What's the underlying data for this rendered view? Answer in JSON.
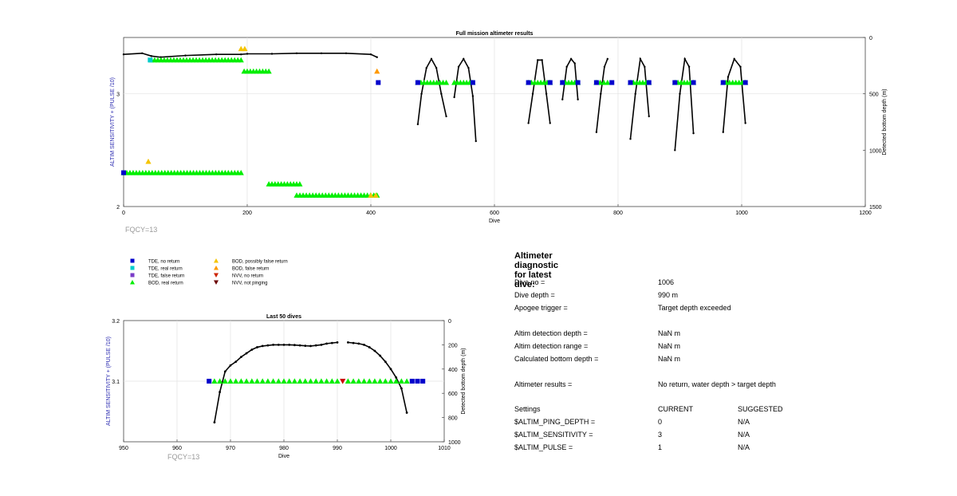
{
  "chart_data": [
    {
      "type": "scatter",
      "title": "Full mission altimeter results",
      "xlabel": "Dive",
      "ylabel_left": "ALTIM SENSITIVITY + (PULSE /10)",
      "ylabel_right": "Detected bottom depth (m)",
      "xlim": [
        0,
        1200
      ],
      "ylim_left": [
        2,
        3.5
      ],
      "ylim_right": [
        1500,
        0
      ],
      "x_ticks": [
        "0",
        "200",
        "400",
        "600",
        "800",
        "1000",
        "1200"
      ],
      "y_ticks_left": [
        "2",
        "3"
      ],
      "y_ticks_right": [
        "0",
        "500",
        "1000",
        "1500"
      ],
      "grid": true,
      "annotation": "FQCY=13",
      "series": [
        {
          "name": "depth",
          "color": "#000000",
          "segments": [
            {
              "x": [
                0,
                30,
                45,
                60,
                100,
                150,
                190,
                200,
                240,
                280,
                320,
                360,
                400,
                410
              ],
              "y": [
                150,
                140,
                165,
                175,
                160,
                150,
                150,
                145,
                145,
                140,
                140,
                140,
                150,
                175
              ]
            },
            {
              "x": [
                476,
                482,
                490,
                498,
                506,
                514,
                522
              ],
              "y": [
                770,
                500,
                270,
                190,
                270,
                500,
                700
              ]
            },
            {
              "x": [
                535,
                542,
                550,
                558,
                565,
                570
              ],
              "y": [
                530,
                260,
                190,
                270,
                520,
                920
              ]
            },
            {
              "x": [
                655,
                662,
                670,
                677,
                684,
                690
              ],
              "y": [
                760,
                500,
                200,
                200,
                500,
                760
              ]
            },
            {
              "x": [
                710,
                717,
                724,
                730,
                735
              ],
              "y": [
                550,
                260,
                190,
                230,
                550
              ]
            },
            {
              "x": [
                765,
                772,
                778,
                783
              ],
              "y": [
                840,
                500,
                260,
                190
              ]
            },
            {
              "x": [
                820,
                828,
                836,
                843,
                850
              ],
              "y": [
                900,
                500,
                190,
                260,
                700
              ]
            },
            {
              "x": [
                892,
                900,
                908,
                915,
                922
              ],
              "y": [
                1000,
                500,
                190,
                260,
                850
              ]
            },
            {
              "x": [
                970,
                978,
                988,
                998,
                1006
              ],
              "y": [
                840,
                350,
                190,
                260,
                760
              ]
            }
          ]
        },
        {
          "name": "BOD, real return",
          "color": "#00ee00",
          "marker": "triangle",
          "segments": [
            {
              "x0": 0,
              "x1": 190,
              "y": 2.3
            },
            {
              "x0": 45,
              "x1": 190,
              "y": 3.3
            },
            {
              "x0": 195,
              "x1": 235,
              "y": 3.2
            },
            {
              "x0": 235,
              "x1": 285,
              "y": 2.2
            },
            {
              "x0": 280,
              "x1": 410,
              "y": 2.1
            },
            {
              "x0": 476,
              "x1": 522,
              "y": 3.1
            },
            {
              "x0": 535,
              "x1": 565,
              "y": 3.1
            },
            {
              "x0": 655,
              "x1": 690,
              "y": 3.1
            },
            {
              "x0": 710,
              "x1": 735,
              "y": 3.1
            },
            {
              "x0": 765,
              "x1": 783,
              "y": 3.1
            },
            {
              "x0": 820,
              "x1": 850,
              "y": 3.1
            },
            {
              "x0": 892,
              "x1": 922,
              "y": 3.1
            },
            {
              "x0": 970,
              "x1": 1006,
              "y": 3.1
            }
          ]
        },
        {
          "name": "BOD, possibly false return",
          "color": "#f5c400",
          "marker": "triangle",
          "points": [
            [
              40,
              2.4
            ],
            [
              190,
              3.4
            ],
            [
              196,
              3.4
            ],
            [
              400,
              2.1
            ],
            [
              408,
              2.1
            ]
          ]
        },
        {
          "name": "BOD, false return",
          "color": "#ff9900",
          "marker": "triangle",
          "points": [
            [
              410,
              3.2
            ]
          ]
        },
        {
          "name": "TDE, no return",
          "color": "#0000cc",
          "marker": "square",
          "points": [
            [
              412,
              3.1
            ],
            [
              476,
              3.1
            ],
            [
              565,
              3.1
            ],
            [
              655,
              3.1
            ],
            [
              690,
              3.1
            ],
            [
              710,
              3.1
            ],
            [
              735,
              3.1
            ],
            [
              765,
              3.1
            ],
            [
              790,
              3.1
            ],
            [
              820,
              3.1
            ],
            [
              850,
              3.1
            ],
            [
              892,
              3.1
            ],
            [
              922,
              3.1
            ],
            [
              970,
              3.1
            ],
            [
              1006,
              3.1
            ],
            [
              0,
              2.3
            ]
          ]
        },
        {
          "name": "TDE, real return",
          "color": "#00cccc",
          "marker": "square",
          "points": [
            [
              43,
              3.3
            ]
          ]
        }
      ]
    },
    {
      "type": "scatter",
      "title": "Last 50 dives",
      "xlabel": "Dive",
      "ylabel_left": "ALTIM SENSITIVITY + (PULSE /10)",
      "ylabel_right": "Detected bottom depth (m)",
      "xlim": [
        950,
        1010
      ],
      "ylim_left": [
        3.0,
        3.2
      ],
      "ylim_right": [
        1000,
        0
      ],
      "x_ticks": [
        "950",
        "960",
        "970",
        "980",
        "990",
        "1000",
        "1010"
      ],
      "y_ticks_left": [
        "3.1",
        "3.2"
      ],
      "y_ticks_right": [
        "0",
        "200",
        "400",
        "600",
        "800",
        "1000"
      ],
      "grid": true,
      "annotation": "FQCY=13",
      "series": [
        {
          "name": "depth",
          "color": "#000000",
          "segments": [
            {
              "x": [
                967,
                968,
                969,
                970,
                971,
                972,
                973,
                974,
                975,
                976,
                977,
                978,
                979,
                980,
                981,
                982,
                983,
                984,
                985,
                986,
                987,
                988,
                989,
                990
              ],
              "y": [
                840,
                590,
                420,
                370,
                340,
                300,
                270,
                240,
                220,
                210,
                205,
                200,
                200,
                200,
                200,
                202,
                205,
                208,
                210,
                205,
                200,
                190,
                185,
                180
              ]
            },
            {
              "x": [
                992,
                993,
                994,
                995,
                996,
                997,
                998,
                999,
                1000,
                1001,
                1002,
                1003
              ],
              "y": [
                180,
                185,
                190,
                200,
                220,
                250,
                290,
                340,
                400,
                470,
                560,
                760
              ]
            }
          ]
        },
        {
          "name": "BOD, real return",
          "color": "#00ee00",
          "marker": "triangle",
          "x": [
            967,
            968,
            969,
            970,
            971,
            972,
            973,
            974,
            975,
            976,
            977,
            978,
            979,
            980,
            981,
            982,
            983,
            984,
            985,
            986,
            987,
            988,
            989,
            990,
            992,
            993,
            994,
            995,
            996,
            997,
            998,
            999,
            1000,
            1001,
            1002,
            1003
          ],
          "y": 3.1
        },
        {
          "name": "NVV, no return",
          "color": "#cc0000",
          "marker": "triangle-down",
          "x": [
            991
          ],
          "y": 3.1
        },
        {
          "name": "TDE, no return",
          "color": "#0000cc",
          "marker": "square",
          "x": [
            966,
            1004,
            1005,
            1006
          ],
          "y": 3.1
        }
      ]
    }
  ],
  "legend": [
    {
      "label": "TDE, no return",
      "color": "#0000cc",
      "marker": "square"
    },
    {
      "label": "TDE, real return",
      "color": "#00cccc",
      "marker": "square"
    },
    {
      "label": "TDE, false return",
      "color": "#7a3cc8",
      "marker": "square"
    },
    {
      "label": "BOD, real return",
      "color": "#00ee00",
      "marker": "triangle"
    },
    {
      "label": "BOD, possibly false return",
      "color": "#f5c400",
      "marker": "triangle"
    },
    {
      "label": "BOD, false return",
      "color": "#ff9900",
      "marker": "triangle"
    },
    {
      "label": "NVV, no return",
      "color": "#cc2200",
      "marker": "triangle-down"
    },
    {
      "label": "NVV, not pinging",
      "color": "#6b0000",
      "marker": "triangle-down"
    }
  ],
  "diagnostic": {
    "title": "Altimeter diagnostic for latest dive:",
    "rows": [
      {
        "label": "Dive no =",
        "value": "1006"
      },
      {
        "label": "Dive depth =",
        "value": "990 m"
      },
      {
        "label": "Apogee trigger =",
        "value": "Target depth exceeded"
      },
      {
        "label": "Altim detection depth =",
        "value": "NaN m"
      },
      {
        "label": "Altim detection range =",
        "value": "NaN m"
      },
      {
        "label": "Calculated bottom depth =",
        "value": "NaN m"
      },
      {
        "label": "Altimeter results =",
        "value": "No return, water depth > target depth"
      }
    ],
    "settings": {
      "header": {
        "label": "Settings",
        "current": "CURRENT",
        "suggested": "SUGGESTED"
      },
      "rows": [
        {
          "label": "$ALTIM_PING_DEPTH =",
          "current": "0",
          "suggested": "N/A"
        },
        {
          "label": "$ALTIM_SENSITIVITY =",
          "current": "3",
          "suggested": "N/A"
        },
        {
          "label": "$ALTIM_PULSE =",
          "current": "1",
          "suggested": "N/A"
        }
      ]
    }
  }
}
